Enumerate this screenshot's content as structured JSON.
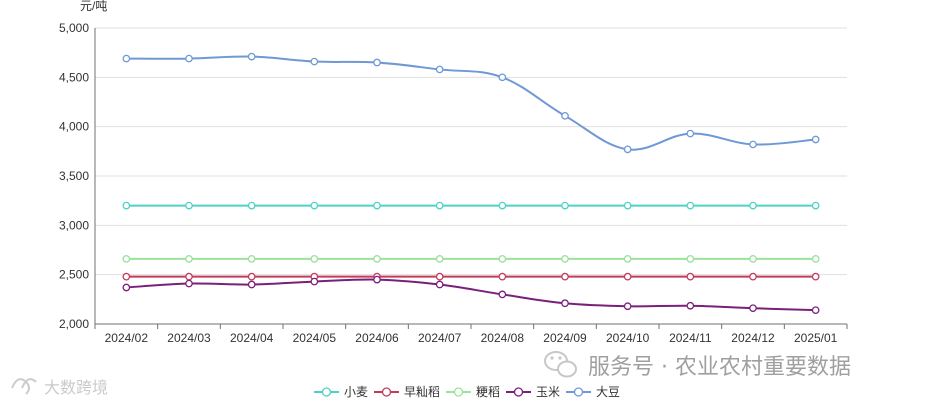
{
  "chart_data": {
    "type": "line",
    "ylabel": "元/吨",
    "ylim": [
      2000,
      5000
    ],
    "yticks": [
      2000,
      2500,
      3000,
      3500,
      4000,
      4500,
      5000
    ],
    "ytick_labels": [
      "2,000",
      "2,500",
      "3,000",
      "3,500",
      "4,000",
      "4,500",
      "5,000"
    ],
    "categories": [
      "2024/02",
      "2024/03",
      "2024/04",
      "2024/05",
      "2024/06",
      "2024/07",
      "2024/08",
      "2024/09",
      "2024/10",
      "2024/11",
      "2024/12",
      "2025/01"
    ],
    "grid": true,
    "legend_position": "bottom-center",
    "series": [
      {
        "name": "小麦",
        "color": "#4fd1c5",
        "values": [
          3200,
          3200,
          3200,
          3200,
          3200,
          3200,
          3200,
          3200,
          3200,
          3200,
          3200,
          3200
        ]
      },
      {
        "name": "早籼稻",
        "color": "#c23b5a",
        "values": [
          2480,
          2480,
          2480,
          2480,
          2480,
          2480,
          2480,
          2480,
          2480,
          2480,
          2480,
          2480
        ]
      },
      {
        "name": "粳稻",
        "color": "#9be29b",
        "values": [
          2660,
          2660,
          2660,
          2660,
          2660,
          2660,
          2660,
          2660,
          2660,
          2660,
          2660,
          2660
        ]
      },
      {
        "name": "玉米",
        "color": "#7a1f7a",
        "values": [
          2370,
          2410,
          2400,
          2430,
          2450,
          2400,
          2300,
          2210,
          2180,
          2185,
          2160,
          2140
        ]
      },
      {
        "name": "大豆",
        "color": "#6e98d6",
        "values": [
          4690,
          4690,
          4710,
          4660,
          4650,
          4580,
          4500,
          4110,
          3770,
          3930,
          3820,
          3870
        ]
      }
    ]
  },
  "watermarks": {
    "wechat": "服务号 · 农业农村重要数据",
    "bottom_left": "大数跨境"
  },
  "icons": {
    "wechat": "wechat-icon",
    "bottom_left": "brand-logo-icon"
  }
}
